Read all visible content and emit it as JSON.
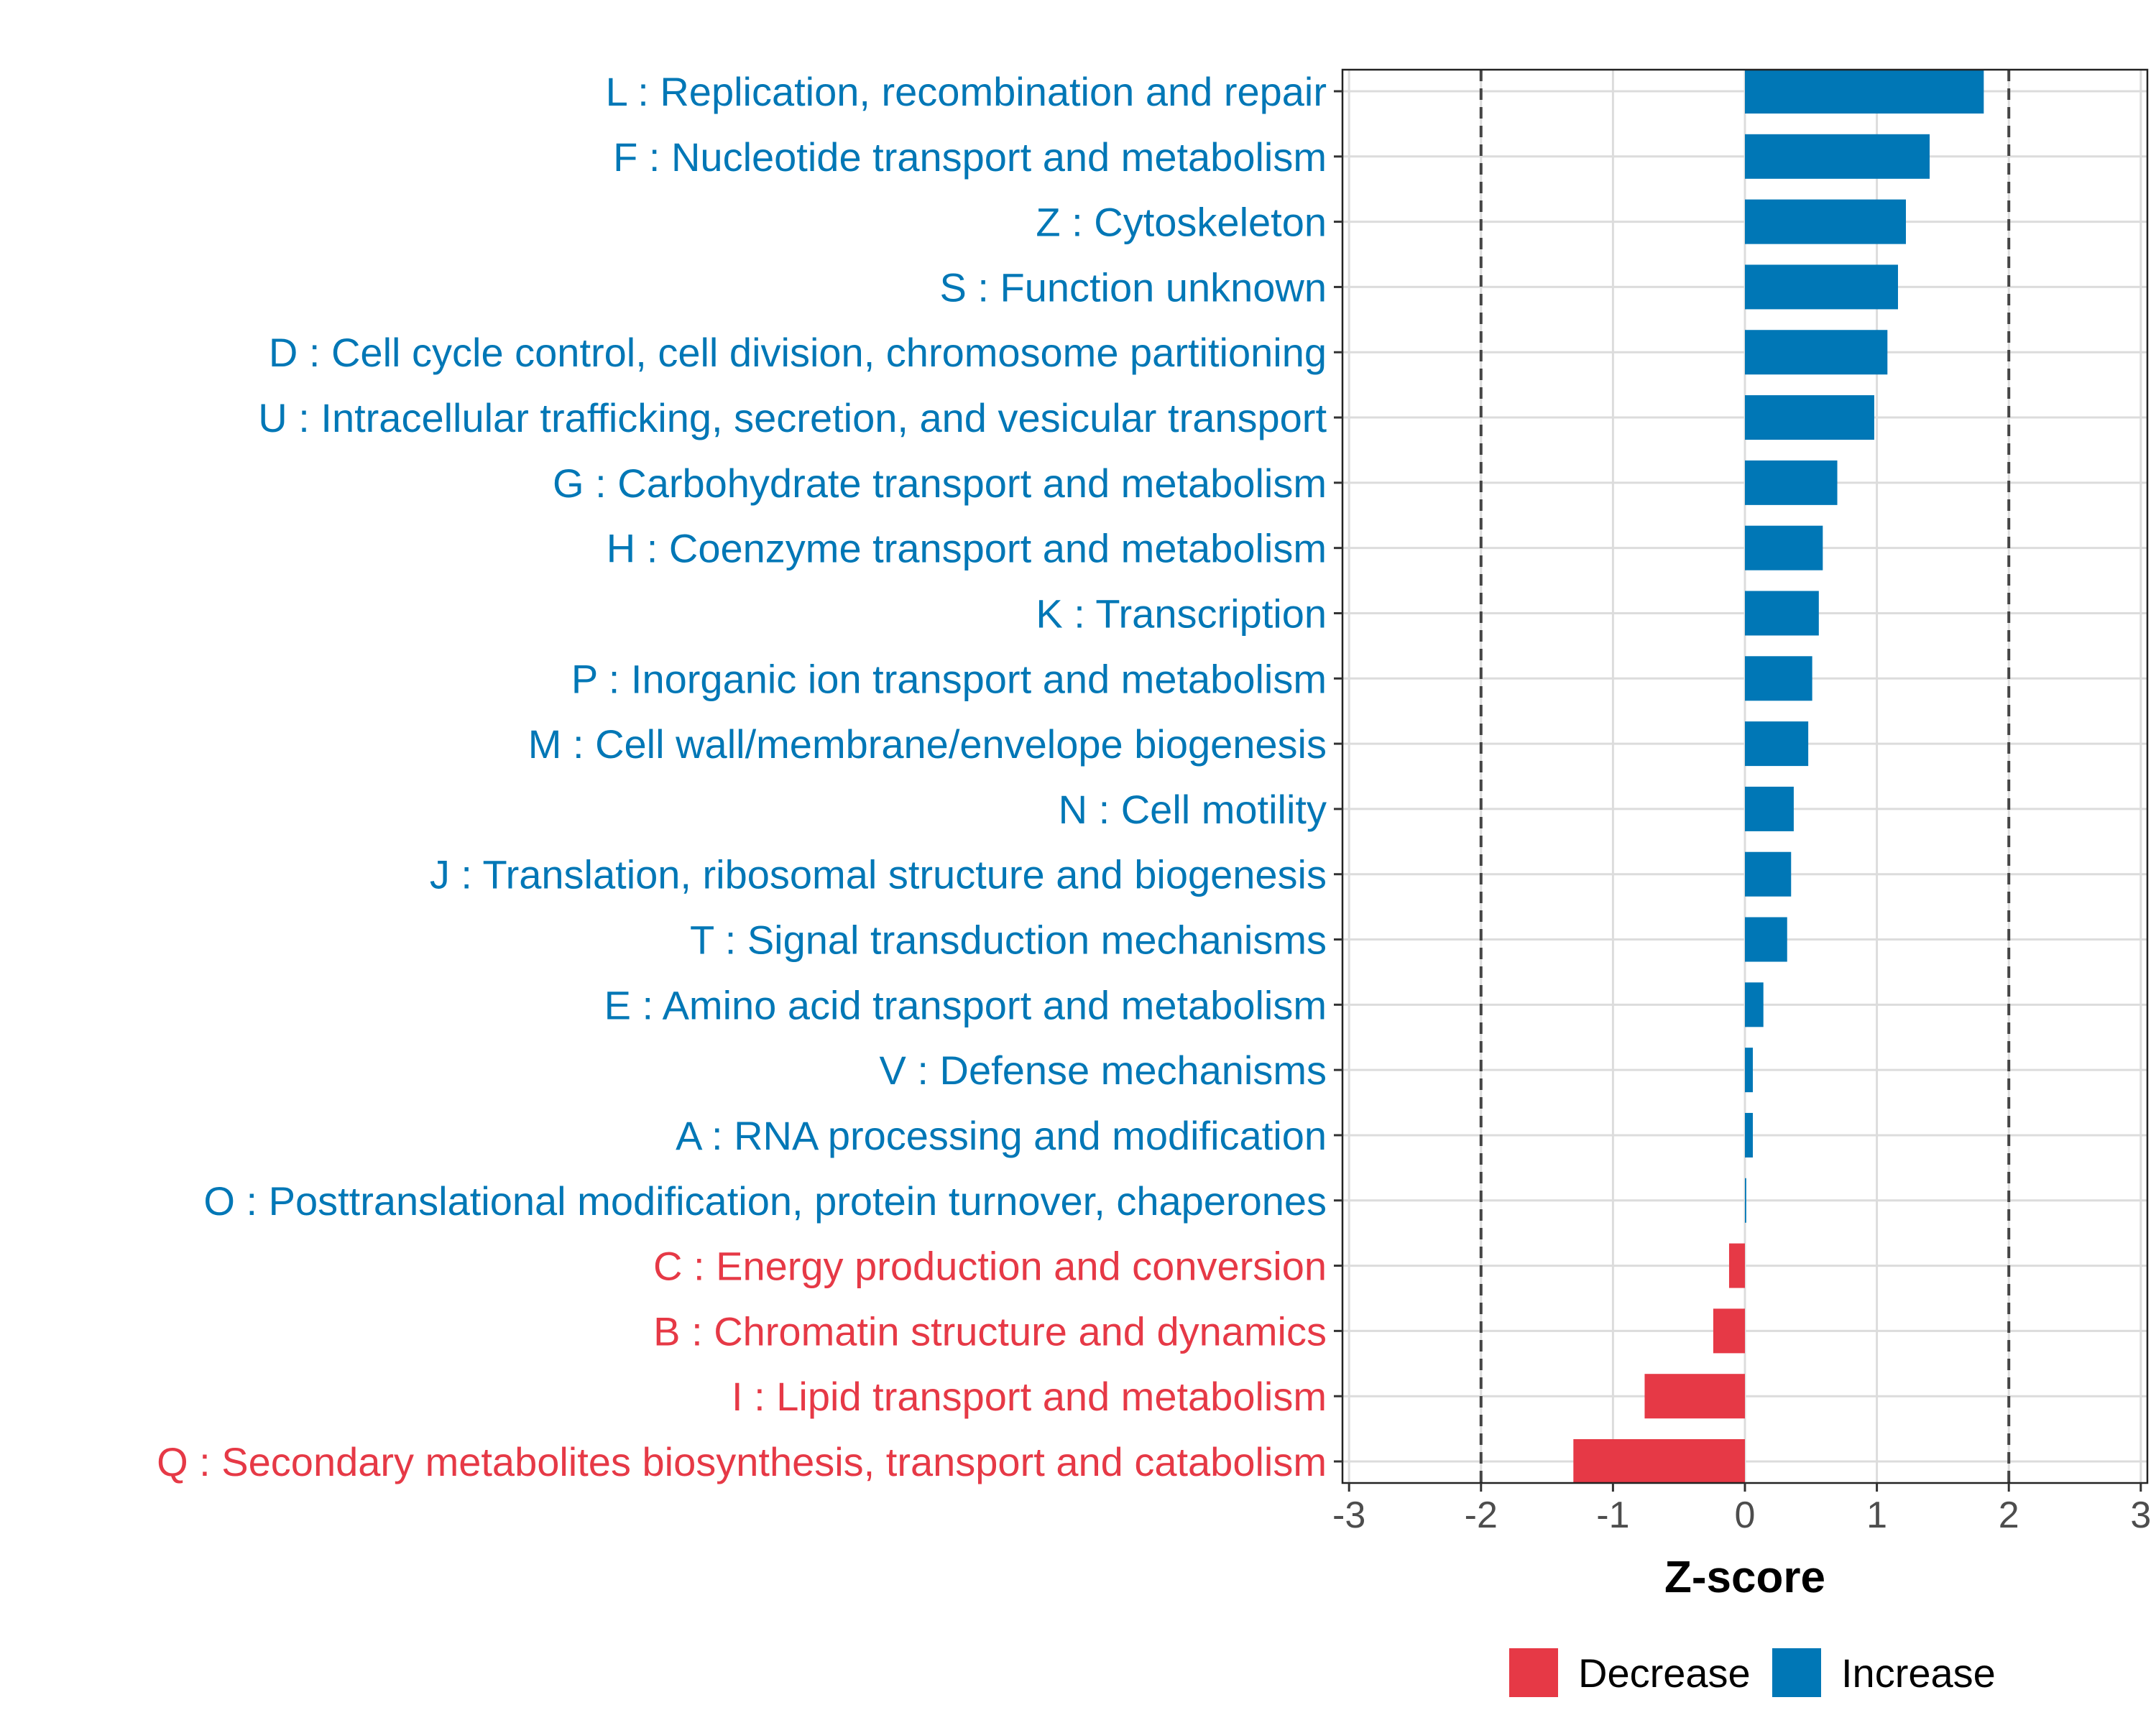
{
  "chart_data": {
    "type": "bar",
    "orientation": "horizontal",
    "xlabel": "Z-score",
    "xlim": [
      -3.05,
      3.05
    ],
    "xticks": [
      -3,
      -2,
      -1,
      0,
      1,
      2,
      3
    ],
    "xtick_labels": [
      "-3",
      "-2",
      "-1",
      "0",
      "1",
      "2",
      "3"
    ],
    "reference_lines": [
      -2,
      2
    ],
    "grid": true,
    "colors": {
      "Increase": "#0077B6",
      "Decrease": "#E63946"
    },
    "legend": {
      "placement": "bottom",
      "items": [
        {
          "label": "Decrease",
          "color": "#E63946"
        },
        {
          "label": "Increase",
          "color": "#0077B6"
        }
      ]
    },
    "categories": [
      {
        "label": "L : Replication, recombination and repair",
        "value": 1.81,
        "group": "Increase"
      },
      {
        "label": "F : Nucleotide transport and metabolism",
        "value": 1.4,
        "group": "Increase"
      },
      {
        "label": "Z : Cytoskeleton",
        "value": 1.22,
        "group": "Increase"
      },
      {
        "label": "S : Function unknown",
        "value": 1.16,
        "group": "Increase"
      },
      {
        "label": "D : Cell cycle control, cell division, chromosome partitioning",
        "value": 1.08,
        "group": "Increase"
      },
      {
        "label": "U : Intracellular trafficking, secretion, and vesicular transport",
        "value": 0.98,
        "group": "Increase"
      },
      {
        "label": "G : Carbohydrate transport and metabolism",
        "value": 0.7,
        "group": "Increase"
      },
      {
        "label": "H : Coenzyme transport and metabolism",
        "value": 0.59,
        "group": "Increase"
      },
      {
        "label": "K : Transcription",
        "value": 0.56,
        "group": "Increase"
      },
      {
        "label": "P : Inorganic ion transport and metabolism",
        "value": 0.51,
        "group": "Increase"
      },
      {
        "label": "M : Cell wall/membrane/envelope biogenesis",
        "value": 0.48,
        "group": "Increase"
      },
      {
        "label": "N : Cell motility",
        "value": 0.37,
        "group": "Increase"
      },
      {
        "label": "J : Translation, ribosomal structure and biogenesis",
        "value": 0.35,
        "group": "Increase"
      },
      {
        "label": "T : Signal transduction mechanisms",
        "value": 0.32,
        "group": "Increase"
      },
      {
        "label": "E : Amino acid transport and metabolism",
        "value": 0.14,
        "group": "Increase"
      },
      {
        "label": "V : Defense mechanisms",
        "value": 0.06,
        "group": "Increase"
      },
      {
        "label": "A : RNA processing and modification",
        "value": 0.06,
        "group": "Increase"
      },
      {
        "label": "O : Posttranslational modification, protein turnover, chaperones",
        "value": 0.01,
        "group": "Increase"
      },
      {
        "label": "C : Energy production and conversion",
        "value": -0.12,
        "group": "Decrease"
      },
      {
        "label": "B : Chromatin structure and dynamics",
        "value": -0.24,
        "group": "Decrease"
      },
      {
        "label": "I : Lipid transport and metabolism",
        "value": -0.76,
        "group": "Decrease"
      },
      {
        "label": "Q : Secondary metabolites biosynthesis, transport and catabolism",
        "value": -1.3,
        "group": "Decrease"
      }
    ]
  }
}
